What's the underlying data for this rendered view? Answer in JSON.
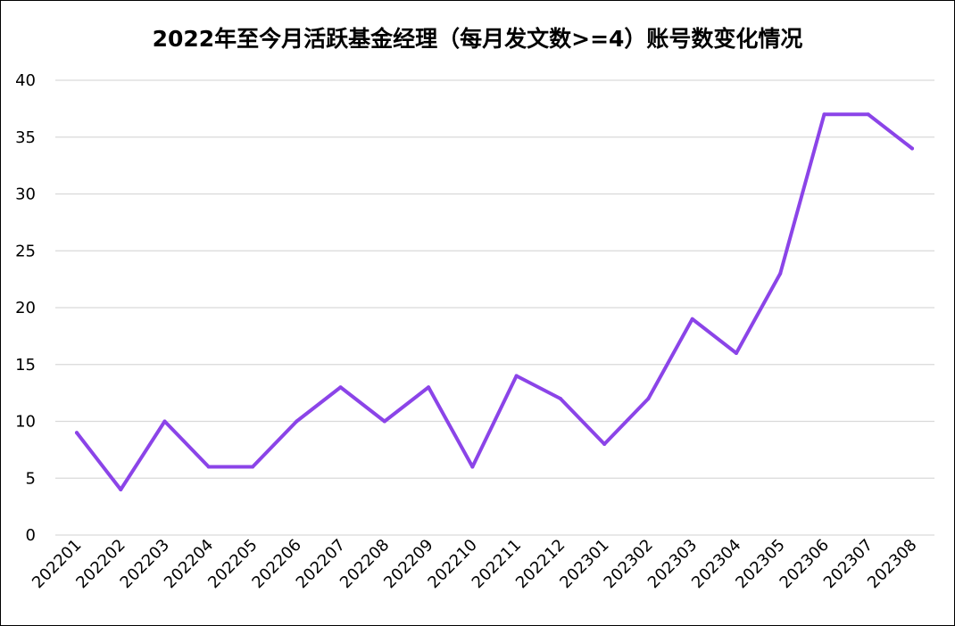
{
  "chart_data": {
    "type": "line",
    "title": "2022年至今月活跃基金经理（每月发文数>=4）账号数变化情况",
    "xlabel": "",
    "ylabel": "",
    "categories": [
      "202201",
      "202202",
      "202203",
      "202204",
      "202205",
      "202206",
      "202207",
      "202208",
      "202209",
      "202210",
      "202211",
      "202212",
      "202301",
      "202302",
      "202303",
      "202304",
      "202305",
      "202306",
      "202307",
      "202308"
    ],
    "series": [
      {
        "values": [
          9,
          4,
          10,
          6,
          6,
          10,
          13,
          10,
          13,
          6,
          14,
          12,
          8,
          12,
          19,
          16,
          23,
          37,
          37,
          34
        ],
        "color": "#8B44E8"
      }
    ],
    "ylim": [
      0,
      40
    ],
    "yticks": [
      0,
      5,
      10,
      15,
      20,
      25,
      30,
      35,
      40
    ],
    "grid": true,
    "legend": "none"
  }
}
